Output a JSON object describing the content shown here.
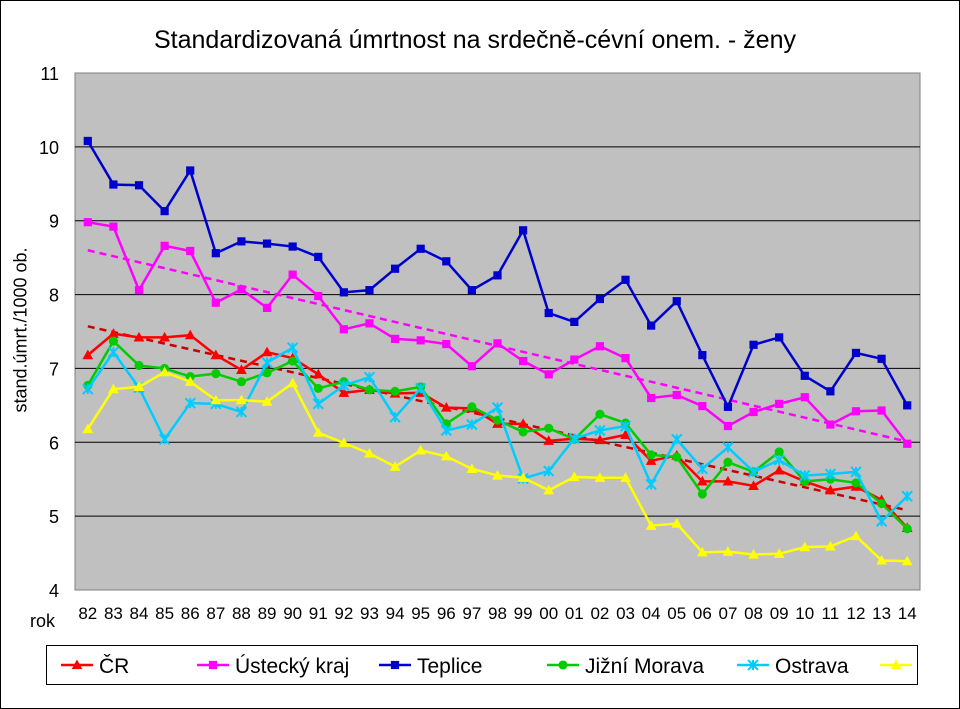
{
  "chart_data": {
    "type": "line",
    "title": "Standardizovaná úmrtnost na srdečně-cévní onem. - ženy",
    "ylabel": "stand.úmrt./1000 ob.",
    "xlabel": "rok",
    "ylim": [
      4,
      11
    ],
    "yticks": [
      "4",
      "5",
      "6",
      "7",
      "8",
      "9",
      "10",
      "11"
    ],
    "grid": true,
    "legend_position": "bottom",
    "categories": [
      "82",
      "83",
      "84",
      "85",
      "86",
      "87",
      "88",
      "89",
      "90",
      "91",
      "92",
      "93",
      "94",
      "95",
      "96",
      "97",
      "98",
      "99",
      "00",
      "01",
      "02",
      "03",
      "04",
      "05",
      "06",
      "07",
      "08",
      "09",
      "10",
      "11",
      "12",
      "13",
      "14"
    ],
    "series": [
      {
        "name": "ČR",
        "color": "#ff0000",
        "marker": "triangle",
        "values": [
          7.18,
          7.47,
          7.42,
          7.42,
          7.45,
          7.18,
          6.98,
          7.22,
          7.14,
          6.92,
          6.67,
          6.71,
          6.66,
          6.67,
          6.47,
          6.46,
          6.25,
          6.25,
          6.02,
          6.05,
          6.03,
          6.1,
          5.75,
          5.82,
          5.47,
          5.47,
          5.41,
          5.62,
          5.47,
          5.35,
          5.4,
          5.22,
          4.84
        ]
      },
      {
        "name": "Ústecký kraj",
        "color": "#ff00ff",
        "marker": "square",
        "values": [
          8.98,
          8.92,
          8.06,
          8.66,
          8.59,
          7.89,
          8.07,
          7.82,
          8.27,
          7.98,
          7.53,
          7.61,
          7.4,
          7.38,
          7.33,
          7.03,
          7.34,
          7.1,
          6.92,
          7.12,
          7.3,
          7.14,
          6.6,
          6.64,
          6.49,
          6.22,
          6.41,
          6.52,
          6.61,
          6.24,
          6.42,
          6.43,
          5.98
        ]
      },
      {
        "name": "Teplice",
        "color": "#0000cc",
        "marker": "square",
        "values": [
          10.08,
          9.49,
          9.48,
          9.13,
          9.68,
          8.56,
          8.72,
          8.69,
          8.65,
          8.51,
          8.03,
          8.06,
          8.35,
          8.62,
          8.45,
          8.06,
          8.26,
          8.87,
          7.75,
          7.63,
          7.94,
          8.2,
          7.58,
          7.91,
          7.18,
          6.48,
          7.32,
          7.42,
          6.9,
          6.69,
          7.21,
          7.13,
          6.5
        ]
      },
      {
        "name": "Jižní Morava",
        "color": "#00cc00",
        "marker": "circle",
        "values": [
          6.77,
          7.37,
          7.04,
          7.0,
          6.89,
          6.93,
          6.82,
          6.94,
          7.1,
          6.73,
          6.82,
          6.71,
          6.69,
          6.75,
          6.25,
          6.48,
          6.3,
          6.14,
          6.19,
          6.04,
          6.38,
          6.26,
          5.83,
          5.8,
          5.3,
          5.73,
          5.6,
          5.87,
          5.47,
          5.5,
          5.45,
          5.17,
          4.83
        ]
      },
      {
        "name": "Ostrava",
        "color": "#00ccff",
        "marker": "star",
        "values": [
          6.72,
          7.22,
          6.74,
          6.04,
          6.53,
          6.52,
          6.41,
          7.08,
          7.28,
          6.52,
          6.77,
          6.88,
          6.34,
          6.73,
          6.16,
          6.24,
          6.47,
          5.51,
          5.61,
          6.05,
          6.16,
          6.22,
          5.43,
          6.04,
          5.64,
          5.93,
          5.6,
          5.76,
          5.55,
          5.57,
          5.6,
          4.93,
          5.27
        ]
      },
      {
        "name": "Praha",
        "color": "#ffff00",
        "marker": "triangle",
        "values": [
          6.18,
          6.72,
          6.75,
          6.95,
          6.82,
          6.57,
          6.57,
          6.55,
          6.8,
          6.13,
          5.99,
          5.85,
          5.67,
          5.89,
          5.81,
          5.64,
          5.55,
          5.52,
          5.35,
          5.53,
          5.52,
          5.52,
          4.87,
          4.9,
          4.51,
          4.52,
          4.48,
          4.49,
          4.58,
          4.59,
          4.73,
          4.4,
          4.39
        ]
      }
    ],
    "trendlines": [
      {
        "series": "ČR",
        "color": "#cc0000",
        "values": [
          7.57,
          5.08
        ]
      },
      {
        "series": "Ústecký kraj",
        "color": "#ff00ff",
        "values": [
          8.6,
          6.01
        ]
      }
    ]
  }
}
